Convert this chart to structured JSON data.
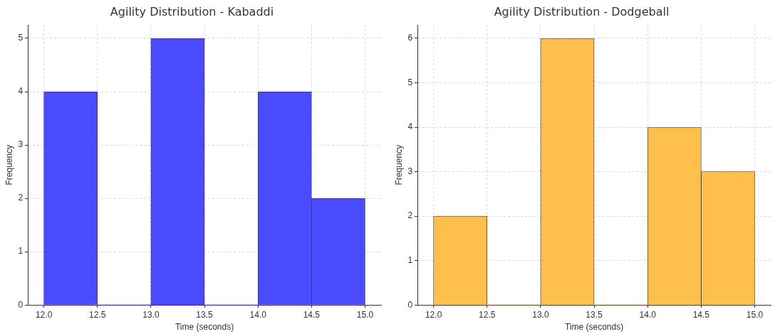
{
  "chart_data": [
    {
      "type": "histogram",
      "title": "Agility Distribution - Kabaddi",
      "xlabel": "Time (seconds)",
      "ylabel": "Frequency",
      "bins": [
        12.0,
        12.5,
        13.0,
        13.5,
        14.0,
        14.5,
        15.0
      ],
      "values": [
        4,
        0,
        5,
        0,
        4,
        2
      ],
      "color": "#4a4aff",
      "xlim": [
        11.85,
        15.15
      ],
      "xticks": [
        {
          "value": 12,
          "label": "12.0"
        },
        {
          "value": 12.5,
          "label": "12.5"
        },
        {
          "value": 13,
          "label": "13.0"
        },
        {
          "value": 13.5,
          "label": "13.5"
        },
        {
          "value": 14,
          "label": "14.0"
        },
        {
          "value": 14.5,
          "label": "14.5"
        },
        {
          "value": 15,
          "label": "15.0"
        }
      ],
      "ylim": [
        0,
        5.25
      ],
      "yticks": [
        0,
        1,
        2,
        3,
        4,
        5
      ],
      "grid": true
    },
    {
      "type": "histogram",
      "title": "Agility Distribution - Dodgeball",
      "xlabel": "Time (seconds)",
      "ylabel": "Frequency",
      "bins": [
        12.0,
        12.5,
        13.0,
        13.5,
        14.0,
        14.5,
        15.0
      ],
      "values": [
        2,
        0,
        6,
        0,
        4,
        3
      ],
      "color": "#ffbf4d",
      "xlim": [
        11.85,
        15.15
      ],
      "xticks": [
        {
          "value": 12,
          "label": "12.0"
        },
        {
          "value": 12.5,
          "label": "12.5"
        },
        {
          "value": 13,
          "label": "13.0"
        },
        {
          "value": 13.5,
          "label": "13.5"
        },
        {
          "value": 14,
          "label": "14.0"
        },
        {
          "value": 14.5,
          "label": "14.5"
        },
        {
          "value": 15,
          "label": "15.0"
        }
      ],
      "ylim": [
        0,
        6.3
      ],
      "yticks": [
        0,
        1,
        2,
        3,
        4,
        5,
        6
      ],
      "grid": true
    }
  ]
}
